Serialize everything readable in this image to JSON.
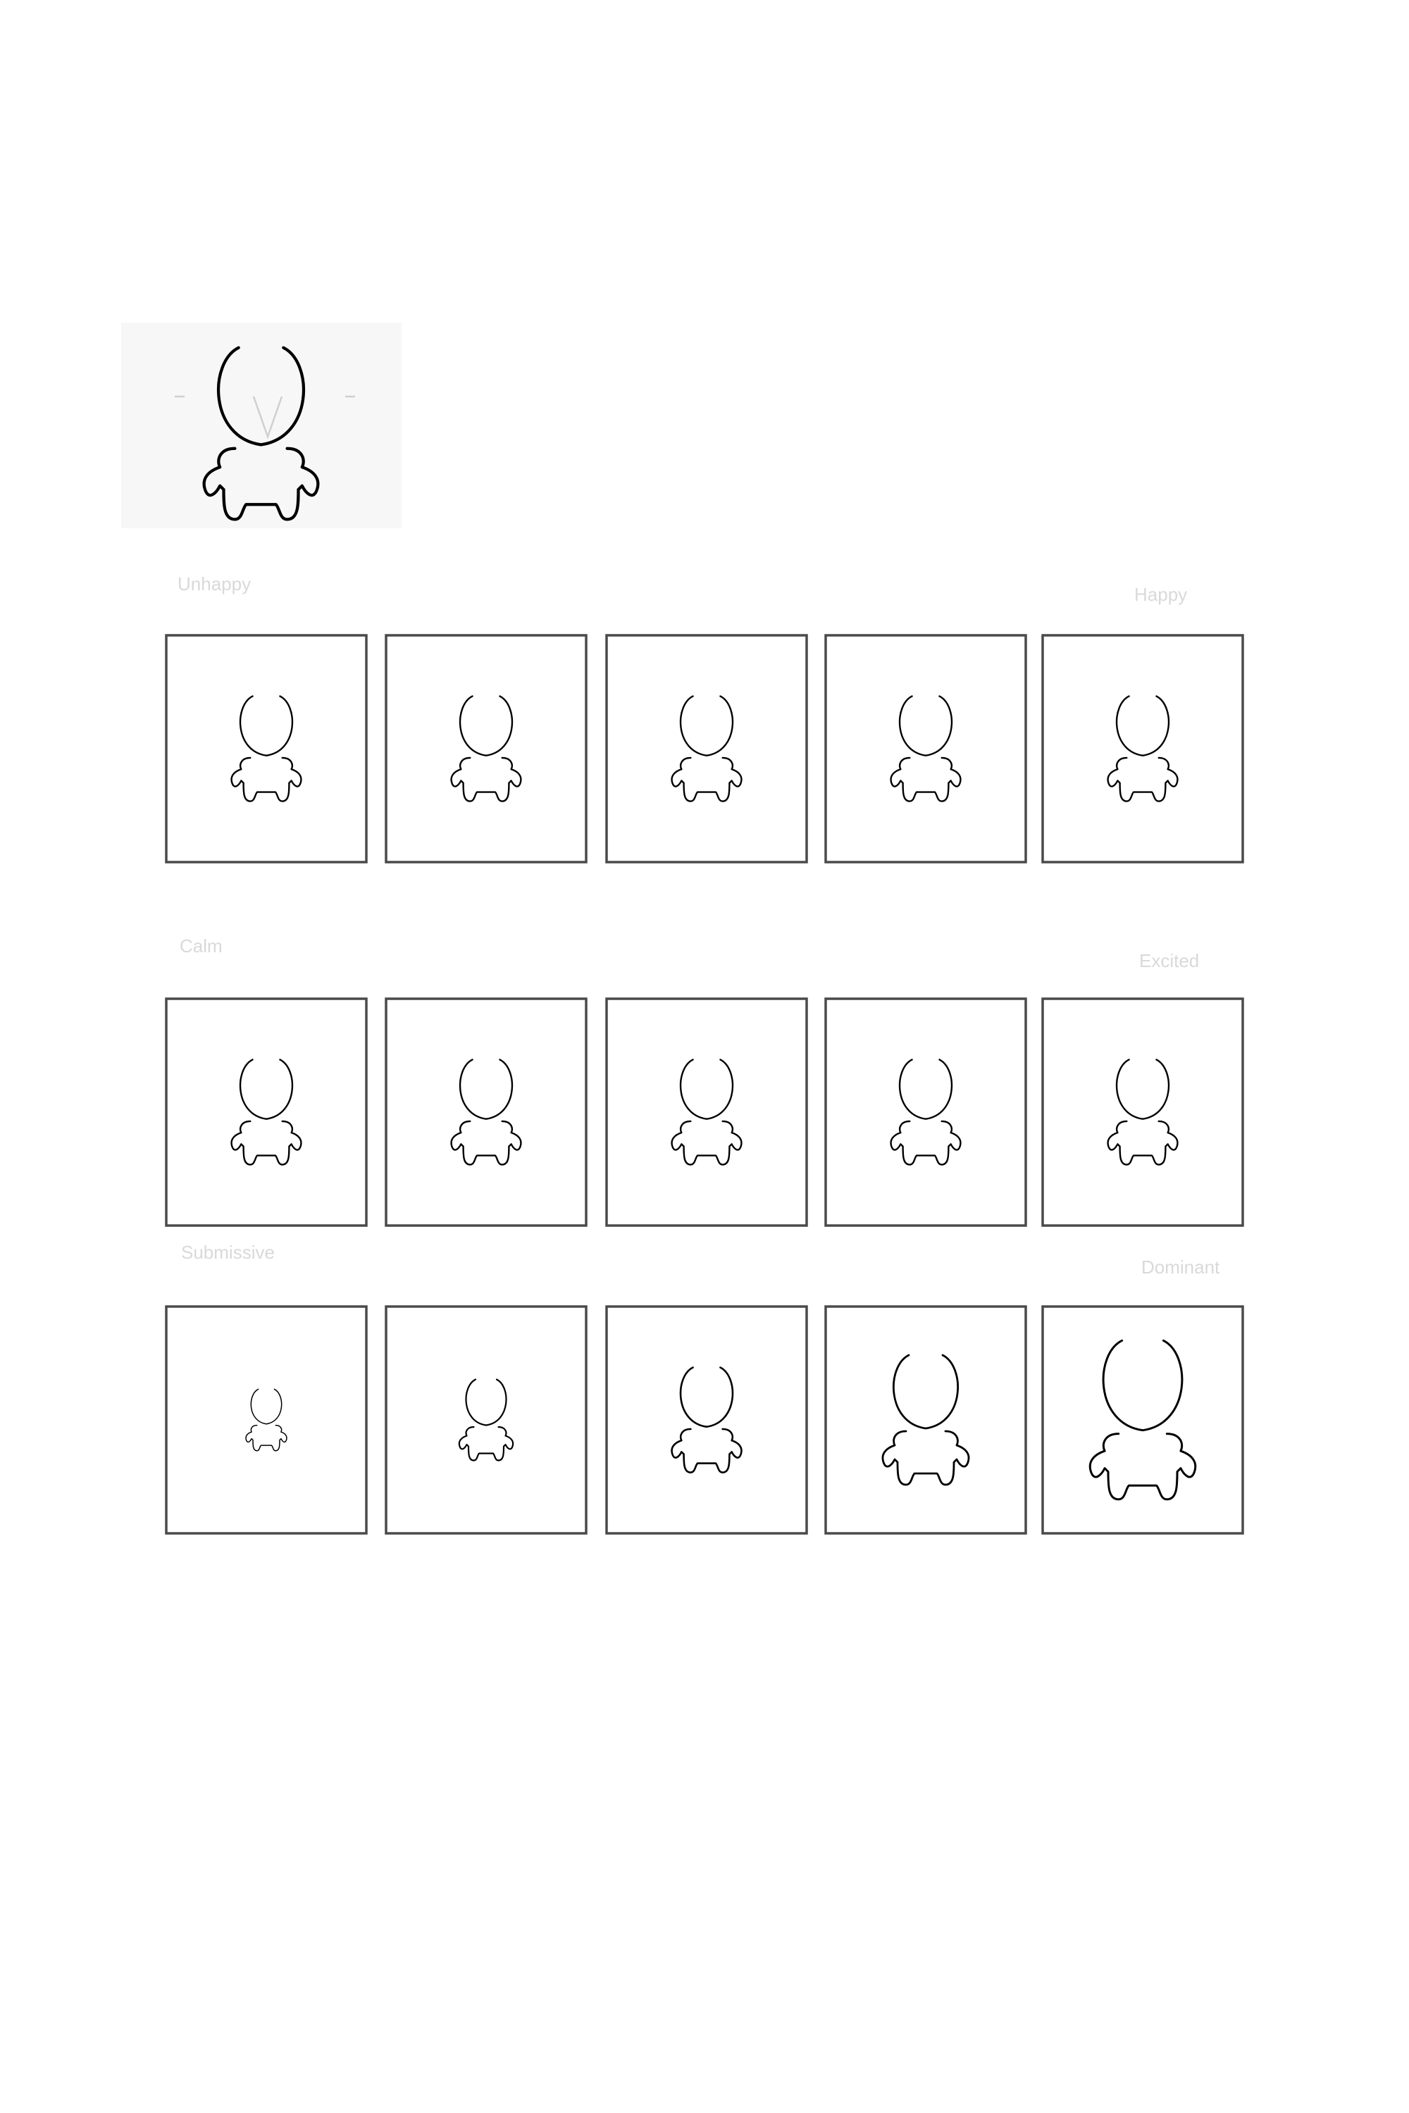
{
  "rows": [
    {
      "label_left": "Unhappy",
      "label_right": "Happy",
      "variants": [
        "normal",
        "normal",
        "normal",
        "normal",
        "normal"
      ]
    },
    {
      "label_left": "Calm",
      "label_right": "Excited",
      "variants": [
        "normal",
        "normal",
        "normal",
        "normal",
        "normal"
      ]
    },
    {
      "label_left": "Submissive",
      "label_right": "Dominant",
      "variants": [
        "scale-1",
        "scale-2",
        "scale-3",
        "scale-4",
        "scale-5"
      ]
    }
  ],
  "icons": {
    "reference": "figure-icon",
    "panel": "figure-icon"
  },
  "colors": {
    "line": "#000000",
    "frame": "#4a4a4a",
    "faint": "#d9d9d9"
  }
}
